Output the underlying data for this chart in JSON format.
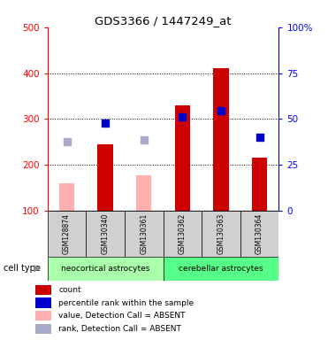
{
  "title": "GDS3366 / 1447249_at",
  "samples": [
    "GSM128874",
    "GSM130340",
    "GSM130361",
    "GSM130362",
    "GSM130363",
    "GSM130364"
  ],
  "bar_values": [
    null,
    245,
    null,
    330,
    410,
    215
  ],
  "bar_values_absent": [
    160,
    null,
    178,
    null,
    null,
    null
  ],
  "dot_blue": [
    null,
    292,
    null,
    305,
    318,
    260
  ],
  "dot_blue_absent": [
    250,
    null,
    255,
    null,
    null,
    null
  ],
  "ylim_left": [
    100,
    500
  ],
  "ylim_right": [
    0,
    100
  ],
  "yticks_left": [
    100,
    200,
    300,
    400,
    500
  ],
  "yticks_right": [
    0,
    25,
    50,
    75,
    100
  ],
  "ytick_labels_right": [
    "0",
    "25",
    "50",
    "75",
    "100%"
  ],
  "bar_color_present": "#cc0000",
  "bar_color_absent": "#ffb0b0",
  "dot_color_present": "#0000cc",
  "dot_color_absent": "#aaaacc",
  "group1_color": "#aaffaa",
  "group2_color": "#55ff88",
  "bar_width": 0.4,
  "dot_size": 40,
  "legend_labels": [
    "count",
    "percentile rank within the sample",
    "value, Detection Call = ABSENT",
    "rank, Detection Call = ABSENT"
  ],
  "legend_colors": [
    "#cc0000",
    "#0000cc",
    "#ffb0b0",
    "#aaaacc"
  ]
}
